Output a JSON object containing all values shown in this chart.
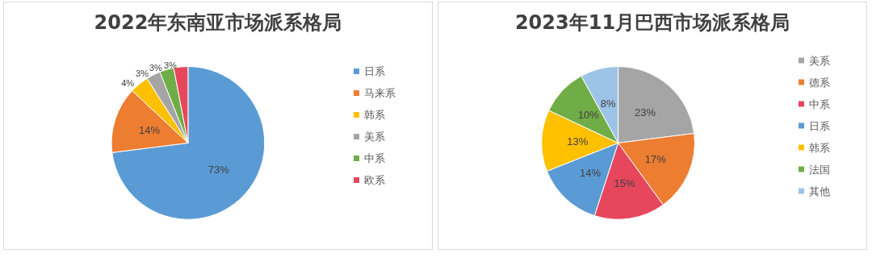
{
  "chart_data": [
    {
      "type": "pie",
      "title": "2022年东南亚市场派系格局",
      "categories": [
        "日系",
        "马来系",
        "韩系",
        "美系",
        "中系",
        "欧系"
      ],
      "values": [
        73,
        14,
        4,
        3,
        3,
        3
      ],
      "value_labels": [
        "73%",
        "14%",
        "4%",
        "3%",
        "3%",
        "3%"
      ],
      "colors": [
        "#5b9bd5",
        "#ed7d31",
        "#ffc000",
        "#a5a5a5",
        "#70ad47",
        "#e6475d"
      ],
      "legend": "right"
    },
    {
      "type": "pie",
      "title": "2023年11月巴西市场派系格局",
      "categories": [
        "美系",
        "德系",
        "中系",
        "日系",
        "韩系",
        "法国",
        "其他"
      ],
      "values": [
        23,
        17,
        15,
        14,
        13,
        10,
        8
      ],
      "value_labels": [
        "23%",
        "17%",
        "15%",
        "14%",
        "13%",
        "10%",
        "8%"
      ],
      "colors": [
        "#a5a5a5",
        "#ed7d31",
        "#e6475d",
        "#5b9bd5",
        "#ffc000",
        "#70ad47",
        "#9dc3e6"
      ],
      "legend": "right"
    }
  ]
}
